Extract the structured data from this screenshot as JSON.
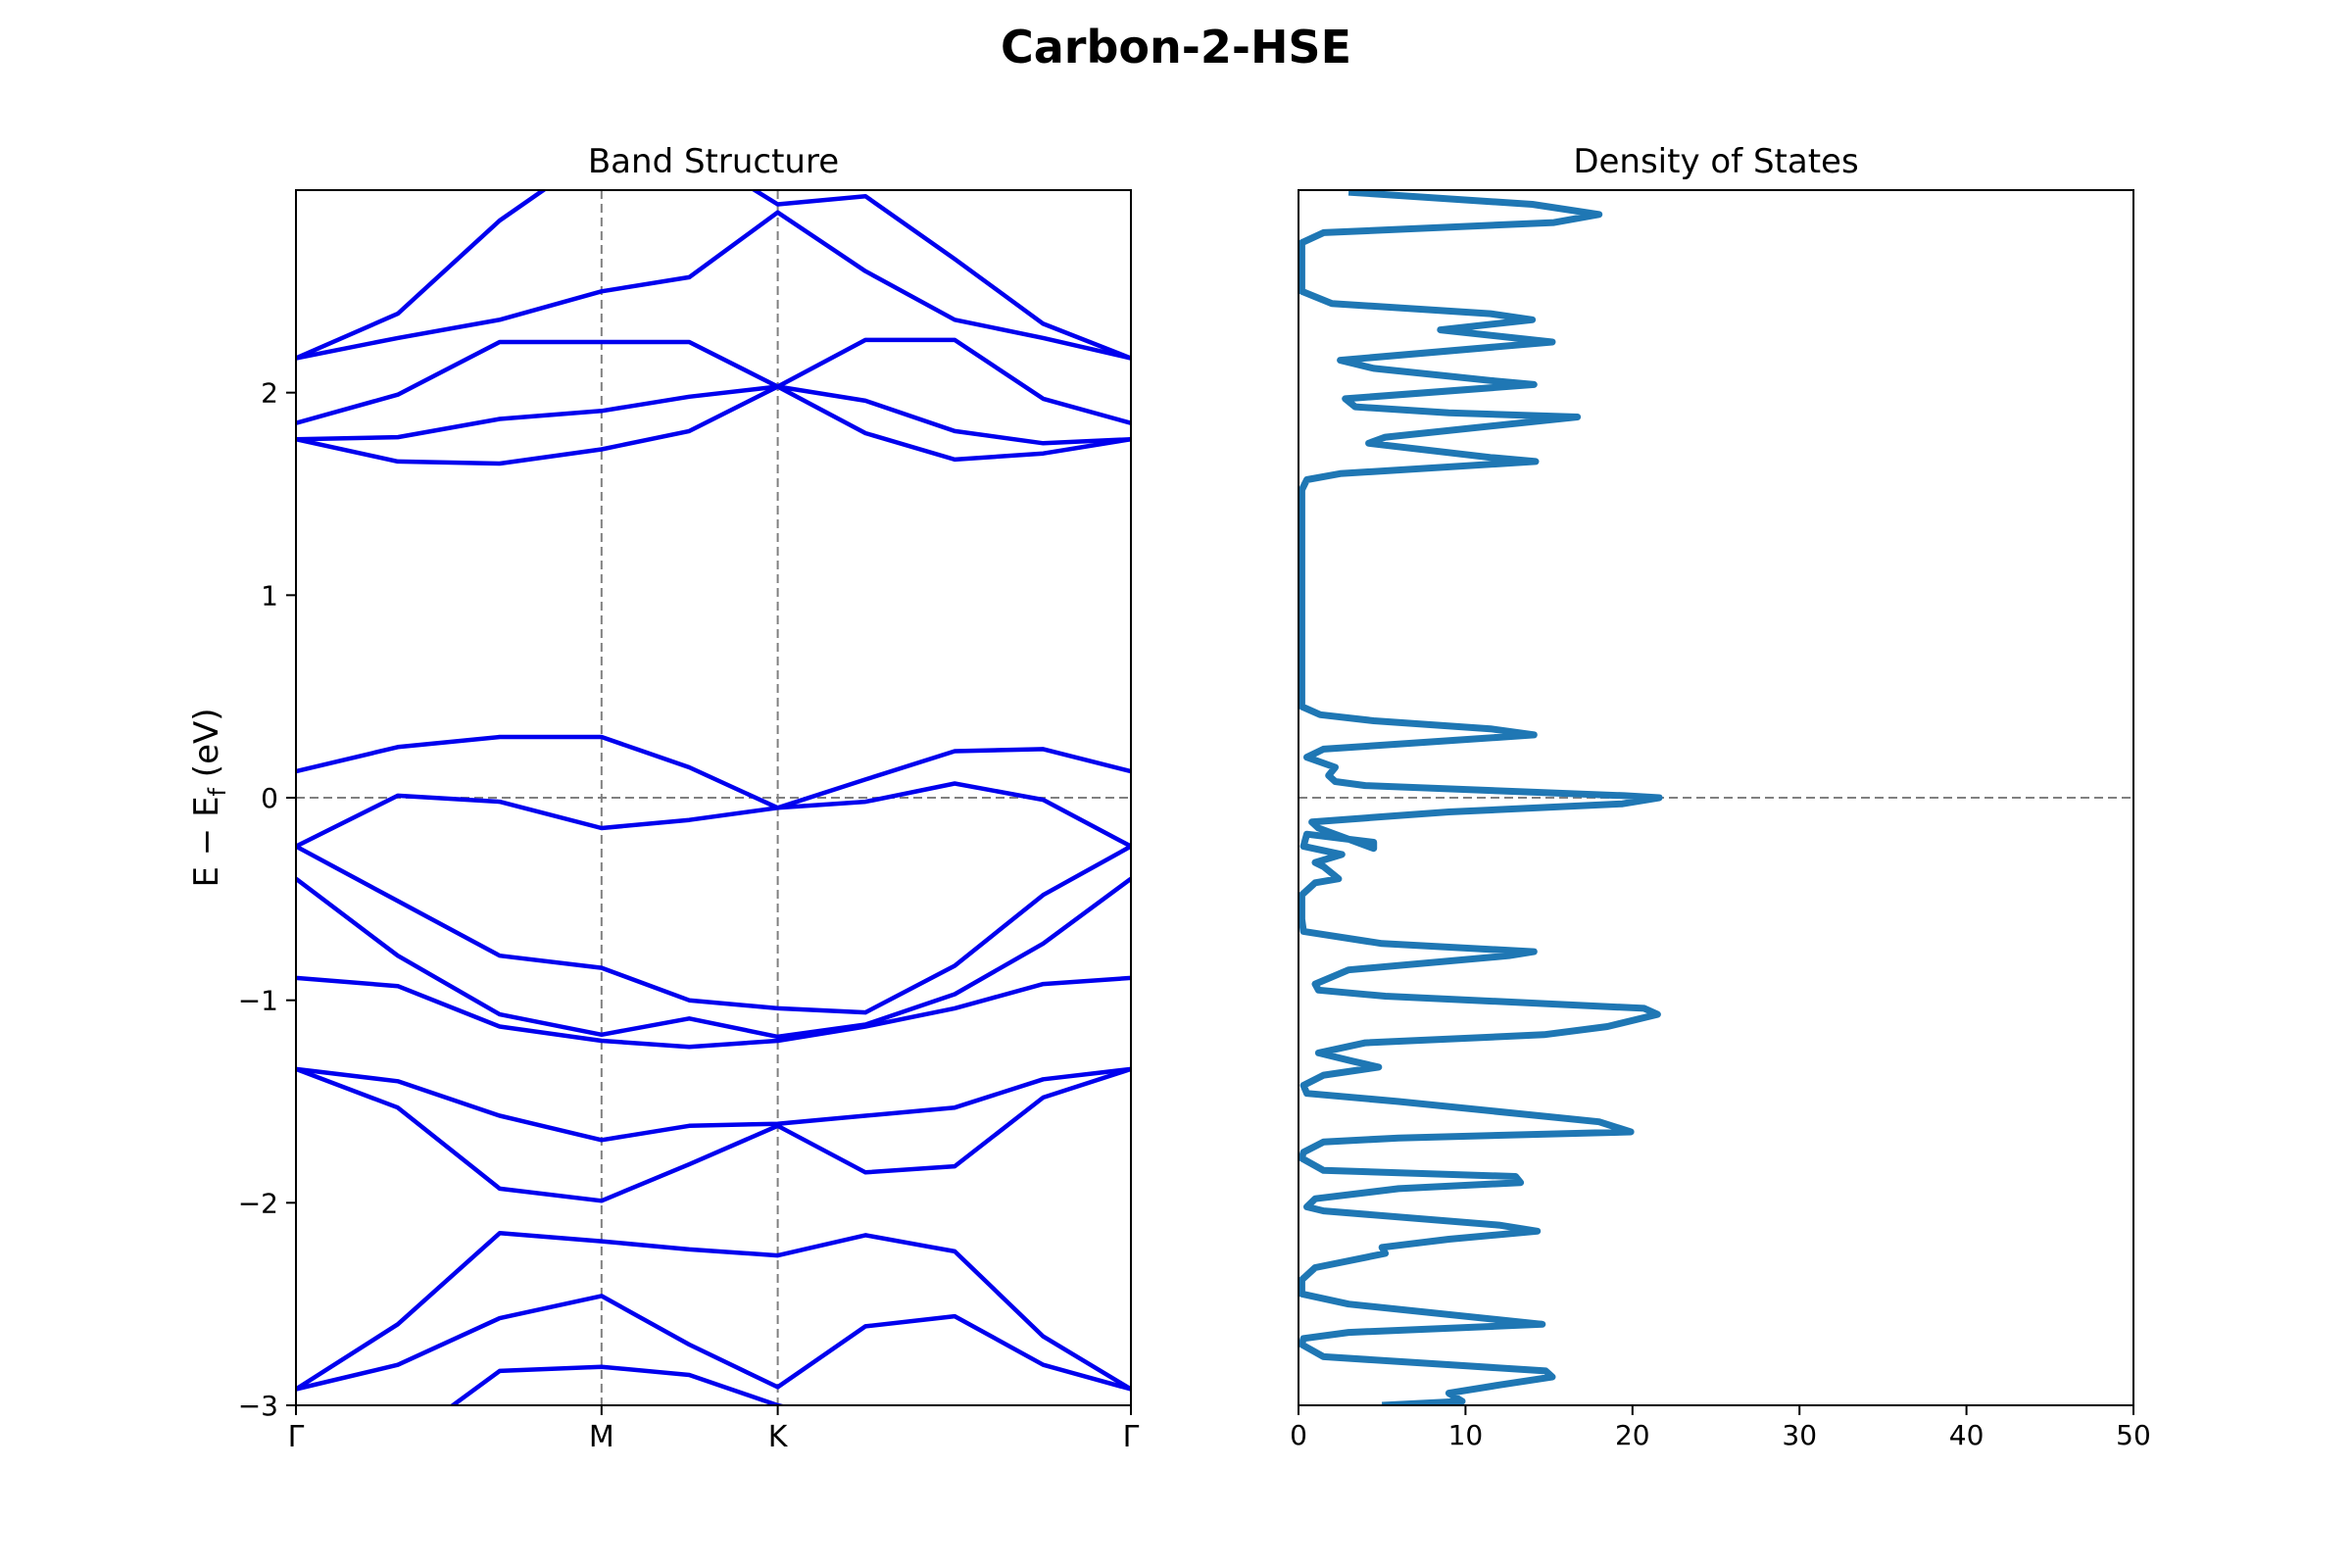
{
  "figure": {
    "title": "Carbon-2-HSE"
  },
  "colors": {
    "band": "#0000ee",
    "dos": "#1f77b4",
    "guide": "#808080",
    "axis": "#000000"
  },
  "chart_data": [
    {
      "type": "line",
      "title": "Band Structure",
      "xlabel": "",
      "ylabel": "E − E",
      "ylabel_sub": "f",
      "ylabel_unit": " (eV)",
      "xlim": [
        0,
        1
      ],
      "ylim": [
        -3,
        3
      ],
      "k_ticks": [
        {
          "x": 0.0,
          "label": "Γ"
        },
        {
          "x": 0.366,
          "label": "M"
        },
        {
          "x": 0.577,
          "label": "K"
        },
        {
          "x": 1.0,
          "label": "Γ"
        }
      ],
      "y_ticks": [
        -3,
        -2,
        -1,
        0,
        1,
        2
      ],
      "y_tick_labels": [
        "−3",
        "−2",
        "−1",
        "0",
        "1",
        "2"
      ],
      "fermi_level": 0,
      "x": [
        0.0,
        0.122,
        0.244,
        0.366,
        0.471,
        0.577,
        0.682,
        0.789,
        0.895,
        1.0
      ],
      "series": [
        {
          "values": [
            -3.45,
            -3.35,
            -3.1,
            -3.05,
            -3.1,
            -3.05,
            -3.1,
            -3.2,
            -3.35,
            -3.45
          ]
        },
        {
          "values": [
            -2.92,
            -2.6,
            -2.15,
            -2.19,
            -2.23,
            -2.26,
            -2.16,
            -2.24,
            -2.66,
            -2.92
          ]
        },
        {
          "values": [
            -2.92,
            -2.8,
            -2.57,
            -2.46,
            -2.7,
            -2.91,
            -2.61,
            -2.56,
            -2.8,
            -2.92
          ]
        },
        {
          "values": [
            -3.3,
            -3.2,
            -2.83,
            -2.81,
            -2.85,
            -3.0,
            -3.1,
            -3.2,
            -3.3,
            -3.3
          ]
        },
        {
          "values": [
            -1.34,
            -1.4,
            -1.57,
            -1.69,
            -1.62,
            -1.61,
            -1.57,
            -1.53,
            -1.39,
            -1.34
          ]
        },
        {
          "values": [
            -1.34,
            -1.53,
            -1.93,
            -1.99,
            -1.81,
            -1.62,
            -1.85,
            -1.82,
            -1.48,
            -1.34
          ]
        },
        {
          "values": [
            -0.89,
            -0.93,
            -1.13,
            -1.2,
            -1.23,
            -1.2,
            -1.13,
            -1.04,
            -0.92,
            -0.89
          ]
        },
        {
          "values": [
            -0.4,
            -0.78,
            -1.07,
            -1.17,
            -1.09,
            -1.18,
            -1.12,
            -0.97,
            -0.72,
            -0.4
          ]
        },
        {
          "values": [
            -0.24,
            -0.51,
            -0.78,
            -0.84,
            -1.0,
            -1.04,
            -1.06,
            -0.83,
            -0.48,
            -0.24
          ]
        },
        {
          "values": [
            -0.24,
            0.01,
            -0.02,
            -0.15,
            -0.11,
            -0.05,
            -0.02,
            0.07,
            -0.01,
            -0.24
          ]
        },
        {
          "values": [
            0.13,
            0.25,
            0.3,
            0.3,
            0.15,
            -0.05,
            0.09,
            0.23,
            0.24,
            0.13
          ]
        },
        {
          "values": [
            1.77,
            1.66,
            1.65,
            1.72,
            1.81,
            2.03,
            1.8,
            1.67,
            1.7,
            1.77
          ]
        },
        {
          "values": [
            1.77,
            1.78,
            1.87,
            1.91,
            1.98,
            2.03,
            1.96,
            1.81,
            1.75,
            1.77
          ]
        },
        {
          "values": [
            1.85,
            1.99,
            2.25,
            2.25,
            2.25,
            2.03,
            2.26,
            2.26,
            1.97,
            1.85
          ]
        },
        {
          "values": [
            2.17,
            2.27,
            2.36,
            2.5,
            2.57,
            2.89,
            2.6,
            2.36,
            2.27,
            2.17
          ]
        },
        {
          "values": [
            2.17,
            2.39,
            2.85,
            3.2,
            3.2,
            2.93,
            2.97,
            2.66,
            2.34,
            2.17
          ]
        }
      ]
    },
    {
      "type": "line",
      "title": "Density of States",
      "xlabel": "",
      "ylabel": "",
      "xlim": [
        0,
        50
      ],
      "ylim": [
        -3,
        3
      ],
      "x_ticks": [
        0,
        10,
        20,
        30,
        40,
        50
      ],
      "fermi_level": 0,
      "points": [
        [
          5,
          -3.0
        ],
        [
          9.8,
          -2.98
        ],
        [
          9,
          -2.94
        ],
        [
          12,
          -2.9
        ],
        [
          15.2,
          -2.86
        ],
        [
          14.8,
          -2.83
        ],
        [
          1.5,
          -2.76
        ],
        [
          0.2,
          -2.7
        ],
        [
          0.3,
          -2.67
        ],
        [
          3,
          -2.64
        ],
        [
          14.6,
          -2.6
        ],
        [
          3,
          -2.5
        ],
        [
          0.2,
          -2.45
        ],
        [
          0.2,
          -2.38
        ],
        [
          1,
          -2.32
        ],
        [
          5.2,
          -2.25
        ],
        [
          5,
          -2.22
        ],
        [
          9,
          -2.18
        ],
        [
          14.3,
          -2.14
        ],
        [
          12,
          -2.11
        ],
        [
          1.5,
          -2.04
        ],
        [
          0.5,
          -2.02
        ],
        [
          1,
          -1.98
        ],
        [
          6,
          -1.93
        ],
        [
          13.3,
          -1.9
        ],
        [
          13,
          -1.87
        ],
        [
          1.5,
          -1.84
        ],
        [
          0.2,
          -1.78
        ],
        [
          0.3,
          -1.75
        ],
        [
          1.5,
          -1.7
        ],
        [
          6,
          -1.68
        ],
        [
          19.9,
          -1.65
        ],
        [
          18,
          -1.6
        ],
        [
          6,
          -1.5
        ],
        [
          0.5,
          -1.46
        ],
        [
          0.3,
          -1.42
        ],
        [
          1.5,
          -1.37
        ],
        [
          4.8,
          -1.33
        ],
        [
          3.2,
          -1.3
        ],
        [
          1.2,
          -1.26
        ],
        [
          4,
          -1.21
        ],
        [
          14.7,
          -1.17
        ],
        [
          18.5,
          -1.13
        ],
        [
          21.5,
          -1.07
        ],
        [
          20.7,
          -1.04
        ],
        [
          5.2,
          -0.98
        ],
        [
          1.2,
          -0.95
        ],
        [
          1,
          -0.92
        ],
        [
          3,
          -0.85
        ],
        [
          12.6,
          -0.78
        ],
        [
          14.1,
          -0.76
        ],
        [
          5,
          -0.72
        ],
        [
          0.3,
          -0.66
        ],
        [
          0.2,
          -0.6
        ],
        [
          0.2,
          -0.48
        ],
        [
          1,
          -0.42
        ],
        [
          2.4,
          -0.4
        ],
        [
          1.5,
          -0.34
        ],
        [
          1,
          -0.32
        ],
        [
          2.6,
          -0.28
        ],
        [
          0.3,
          -0.24
        ],
        [
          0.5,
          -0.18
        ],
        [
          4.5,
          -0.22
        ],
        [
          4.5,
          -0.25
        ],
        [
          1.2,
          -0.15
        ],
        [
          0.8,
          -0.12
        ],
        [
          4,
          -0.1
        ],
        [
          9,
          -0.07
        ],
        [
          19.4,
          -0.03
        ],
        [
          21.6,
          0.0
        ],
        [
          19.5,
          0.01
        ],
        [
          4,
          0.06
        ],
        [
          2.2,
          0.08
        ],
        [
          1.8,
          0.11
        ],
        [
          2.2,
          0.15
        ],
        [
          0.5,
          0.2
        ],
        [
          1.5,
          0.24
        ],
        [
          14.1,
          0.31
        ],
        [
          11.5,
          0.34
        ],
        [
          4.5,
          0.38
        ],
        [
          1.3,
          0.41
        ],
        [
          0.2,
          0.45
        ],
        [
          0.2,
          1.52
        ],
        [
          0.5,
          1.57
        ],
        [
          2.5,
          1.6
        ],
        [
          14.2,
          1.66
        ],
        [
          11.5,
          1.68
        ],
        [
          4.2,
          1.75
        ],
        [
          5.2,
          1.78
        ],
        [
          16.7,
          1.88
        ],
        [
          9,
          1.9
        ],
        [
          3.4,
          1.93
        ],
        [
          2.8,
          1.97
        ],
        [
          14.1,
          2.04
        ],
        [
          11.5,
          2.06
        ],
        [
          4.5,
          2.12
        ],
        [
          2.5,
          2.16
        ],
        [
          15.2,
          2.25
        ],
        [
          8.5,
          2.31
        ],
        [
          14,
          2.36
        ],
        [
          11.5,
          2.39
        ],
        [
          2,
          2.44
        ],
        [
          0.2,
          2.5
        ],
        [
          0.2,
          2.74
        ],
        [
          1.5,
          2.79
        ],
        [
          15.3,
          2.84
        ],
        [
          18,
          2.88
        ],
        [
          14,
          2.93
        ],
        [
          3,
          2.99
        ]
      ]
    }
  ]
}
